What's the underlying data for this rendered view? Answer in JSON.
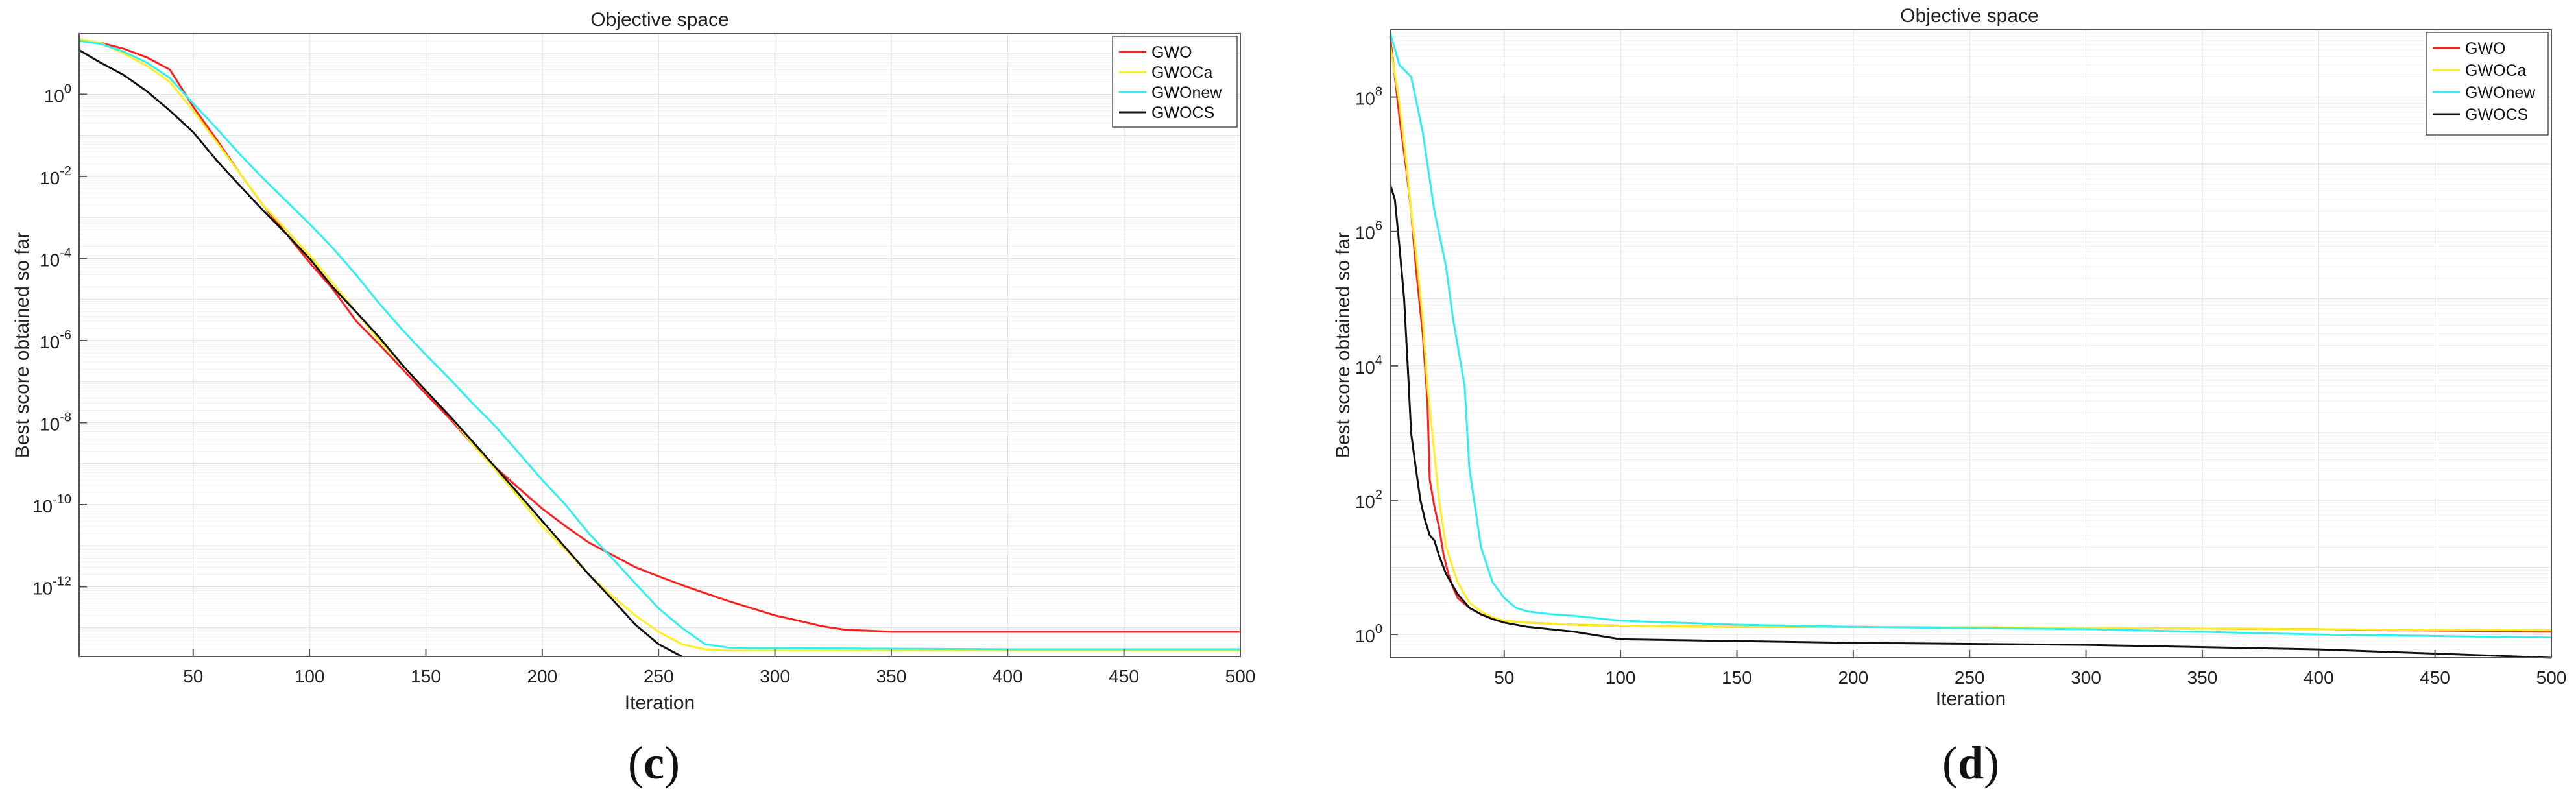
{
  "chart_data": [
    {
      "panel": "(c)",
      "panel_letter": "c",
      "type": "line",
      "title": "Objective space",
      "xlabel": "Iteration",
      "ylabel": "Best score obtained so far",
      "xlim": [
        1,
        500
      ],
      "ylim": [
        2e-14,
        30
      ],
      "yscale": "log",
      "grid": true,
      "legend_position": "top-right",
      "xticks": [
        50,
        100,
        150,
        200,
        250,
        300,
        350,
        400,
        450,
        500
      ],
      "yticks": [
        {
          "value": 1,
          "base": "10",
          "exp": "0"
        },
        {
          "value": 0.01,
          "base": "10",
          "exp": "-2"
        },
        {
          "value": 0.0001,
          "base": "10",
          "exp": "-4"
        },
        {
          "value": 1e-06,
          "base": "10",
          "exp": "-6"
        },
        {
          "value": 1e-08,
          "base": "10",
          "exp": "-8"
        },
        {
          "value": 1e-10,
          "base": "10",
          "exp": "-10"
        },
        {
          "value": 1e-12,
          "base": "10",
          "exp": "-12"
        }
      ],
      "series": [
        {
          "name": "GWO",
          "color": "#ff2020",
          "x": [
            1,
            10,
            20,
            30,
            40,
            50,
            60,
            70,
            80,
            90,
            100,
            110,
            120,
            130,
            140,
            150,
            160,
            170,
            180,
            190,
            200,
            210,
            220,
            230,
            240,
            250,
            260,
            270,
            280,
            290,
            300,
            310,
            320,
            330,
            340,
            350,
            400,
            450,
            500
          ],
          "y": [
            20,
            18,
            13,
            8,
            4,
            0.5,
            0.08,
            0.012,
            0.002,
            0.0004,
            8e-05,
            1.8e-05,
            3e-06,
            8e-07,
            2e-07,
            5e-08,
            1.3e-08,
            3e-09,
            8e-10,
            2.5e-10,
            8e-11,
            3e-11,
            1.2e-11,
            6e-12,
            3e-12,
            1.8e-12,
            1.1e-12,
            7e-13,
            4.5e-13,
            3e-13,
            2e-13,
            1.5e-13,
            1.1e-13,
            9e-14,
            8.5e-14,
            8e-14,
            8e-14,
            8e-14,
            8e-14
          ]
        },
        {
          "name": "GWOCa",
          "color": "#ffee22",
          "x": [
            1,
            10,
            20,
            30,
            40,
            50,
            60,
            70,
            80,
            90,
            100,
            110,
            120,
            130,
            140,
            150,
            160,
            170,
            180,
            190,
            200,
            210,
            220,
            230,
            240,
            250,
            260,
            270,
            280,
            290,
            300,
            350,
            400,
            450,
            500
          ],
          "y": [
            22,
            18,
            10,
            5,
            2,
            0.4,
            0.07,
            0.012,
            0.002,
            0.0005,
            0.00012,
            2.5e-05,
            5e-06,
            1e-06,
            2.5e-07,
            6e-08,
            1.5e-08,
            3e-09,
            7e-10,
            1.5e-10,
            3e-11,
            8e-12,
            2e-12,
            6e-13,
            2e-13,
            8e-14,
            4e-14,
            3e-14,
            2.8e-14,
            2.8e-14,
            2.8e-14,
            2.8e-14,
            2.8e-14,
            2.8e-14,
            2.8e-14
          ]
        },
        {
          "name": "GWOnew",
          "color": "#33eeee",
          "x": [
            1,
            10,
            20,
            30,
            40,
            50,
            60,
            70,
            80,
            90,
            100,
            110,
            120,
            130,
            140,
            150,
            160,
            170,
            180,
            190,
            200,
            210,
            220,
            230,
            240,
            250,
            260,
            270,
            280,
            290,
            300,
            350,
            400,
            450,
            500
          ],
          "y": [
            20,
            17,
            11,
            6,
            2.5,
            0.6,
            0.15,
            0.035,
            0.009,
            0.0025,
            0.0007,
            0.00018,
            4e-05,
            8e-06,
            1.8e-06,
            4.5e-07,
            1.2e-07,
            3e-08,
            8e-09,
            1.8e-09,
            4e-10,
            1e-10,
            2e-11,
            5e-12,
            1.2e-12,
            3e-13,
            1e-13,
            4e-14,
            3.3e-14,
            3.2e-14,
            3.2e-14,
            3.1e-14,
            3e-14,
            3e-14,
            3e-14
          ]
        },
        {
          "name": "GWOCS",
          "color": "#111111",
          "x": [
            1,
            10,
            20,
            30,
            40,
            50,
            60,
            70,
            80,
            90,
            100,
            110,
            120,
            130,
            140,
            150,
            160,
            170,
            180,
            190,
            200,
            210,
            220,
            230,
            240,
            250,
            260
          ],
          "y": [
            12,
            6,
            3,
            1.2,
            0.4,
            0.12,
            0.025,
            0.006,
            0.0015,
            0.0004,
            0.0001,
            2e-05,
            5e-06,
            1.2e-06,
            2.5e-07,
            6e-08,
            1.5e-08,
            3.5e-09,
            8e-10,
            1.8e-10,
            4e-11,
            9e-12,
            2e-12,
            5e-13,
            1.2e-13,
            4e-14,
            2e-14
          ]
        }
      ]
    },
    {
      "panel": "(d)",
      "panel_letter": "d",
      "type": "line",
      "title": "Objective space",
      "xlabel": "Iteration",
      "ylabel": "Best score obtained so far",
      "xlim": [
        1,
        500
      ],
      "ylim": [
        0.45,
        1000000000
      ],
      "yscale": "log",
      "grid": true,
      "legend_position": "top-right",
      "xticks": [
        50,
        100,
        150,
        200,
        250,
        300,
        350,
        400,
        450,
        500
      ],
      "yticks": [
        {
          "value": 100000000,
          "base": "10",
          "exp": "8"
        },
        {
          "value": 1000000,
          "base": "10",
          "exp": "6"
        },
        {
          "value": 10000,
          "base": "10",
          "exp": "4"
        },
        {
          "value": 100,
          "base": "10",
          "exp": "2"
        },
        {
          "value": 1,
          "base": "10",
          "exp": "0"
        }
      ],
      "series": [
        {
          "name": "GWO",
          "color": "#ff2020",
          "x": [
            1,
            3,
            5,
            8,
            10,
            12,
            15,
            17,
            18,
            20,
            22,
            24,
            26,
            28,
            30,
            35,
            40,
            45,
            50,
            60,
            80,
            100,
            150,
            200,
            300,
            400,
            500
          ],
          "y": [
            800000000,
            200000000,
            50000000,
            8000000,
            2000000,
            300000,
            30000,
            3000,
            200,
            80,
            40,
            15,
            8,
            5,
            3.5,
            2.5,
            2,
            1.7,
            1.6,
            1.5,
            1.4,
            1.35,
            1.3,
            1.3,
            1.25,
            1.2,
            1.1
          ]
        },
        {
          "name": "GWOCa",
          "color": "#ffee22",
          "x": [
            1,
            5,
            8,
            10,
            12,
            15,
            17,
            20,
            22,
            25,
            30,
            35,
            40,
            45,
            50,
            60,
            80,
            100,
            150,
            200,
            300,
            400,
            500
          ],
          "y": [
            600000000,
            80000000,
            10000000,
            2000000,
            500000,
            50000,
            5000,
            500,
            100,
            20,
            6,
            3,
            2.2,
            1.8,
            1.6,
            1.5,
            1.4,
            1.35,
            1.3,
            1.3,
            1.25,
            1.2,
            1.15
          ]
        },
        {
          "name": "GWOnew",
          "color": "#33eeee",
          "x": [
            1,
            5,
            10,
            15,
            20,
            25,
            28,
            30,
            33,
            35,
            38,
            40,
            45,
            50,
            55,
            60,
            70,
            80,
            100,
            150,
            200,
            300,
            400,
            500
          ],
          "y": [
            900000000,
            300000000,
            200000000,
            30000000,
            2000000,
            300000,
            50000,
            20000,
            5000,
            300,
            60,
            20,
            6,
            3.5,
            2.5,
            2.2,
            2,
            1.9,
            1.6,
            1.4,
            1.3,
            1.2,
            1.0,
            0.9
          ]
        },
        {
          "name": "GWOCS",
          "color": "#111111",
          "x": [
            1,
            3,
            5,
            7,
            9,
            10,
            12,
            14,
            16,
            18,
            20,
            22,
            25,
            30,
            35,
            40,
            45,
            50,
            60,
            80,
            100,
            150,
            200,
            300,
            400,
            500
          ],
          "y": [
            5000000,
            3000000,
            600000,
            100000,
            5000,
            1000,
            300,
            100,
            50,
            30,
            25,
            15,
            8,
            4,
            2.5,
            2,
            1.7,
            1.5,
            1.3,
            1.1,
            0.85,
            0.8,
            0.75,
            0.7,
            0.6,
            0.45
          ]
        }
      ]
    }
  ]
}
